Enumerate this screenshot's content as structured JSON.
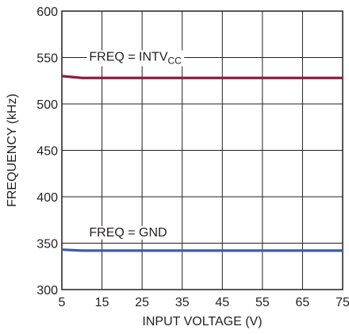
{
  "chart_data": {
    "type": "line",
    "title": "",
    "xlabel": "INPUT VOLTAGE (V)",
    "ylabel": "FREQUENCY (kHz)",
    "xlim": [
      5,
      75
    ],
    "ylim": [
      300,
      600
    ],
    "x_ticks": [
      5,
      15,
      25,
      35,
      45,
      55,
      65,
      75
    ],
    "y_ticks": [
      300,
      350,
      400,
      450,
      500,
      550,
      600
    ],
    "grid": true,
    "series": [
      {
        "name": "FREQ = INTVCC",
        "name_main": "FREQ = INTV",
        "name_sub": "CC",
        "color": "#8c1d40",
        "x": [
          5,
          10,
          15,
          25,
          35,
          45,
          55,
          65,
          75
        ],
        "values": [
          530,
          528,
          528,
          528,
          528,
          528,
          528,
          528,
          528
        ]
      },
      {
        "name": "FREQ = GND",
        "color": "#3e5aa8",
        "x": [
          5,
          10,
          15,
          25,
          35,
          45,
          55,
          65,
          75
        ],
        "values": [
          343,
          342,
          342,
          342,
          342,
          342,
          342,
          342,
          342
        ]
      }
    ]
  }
}
